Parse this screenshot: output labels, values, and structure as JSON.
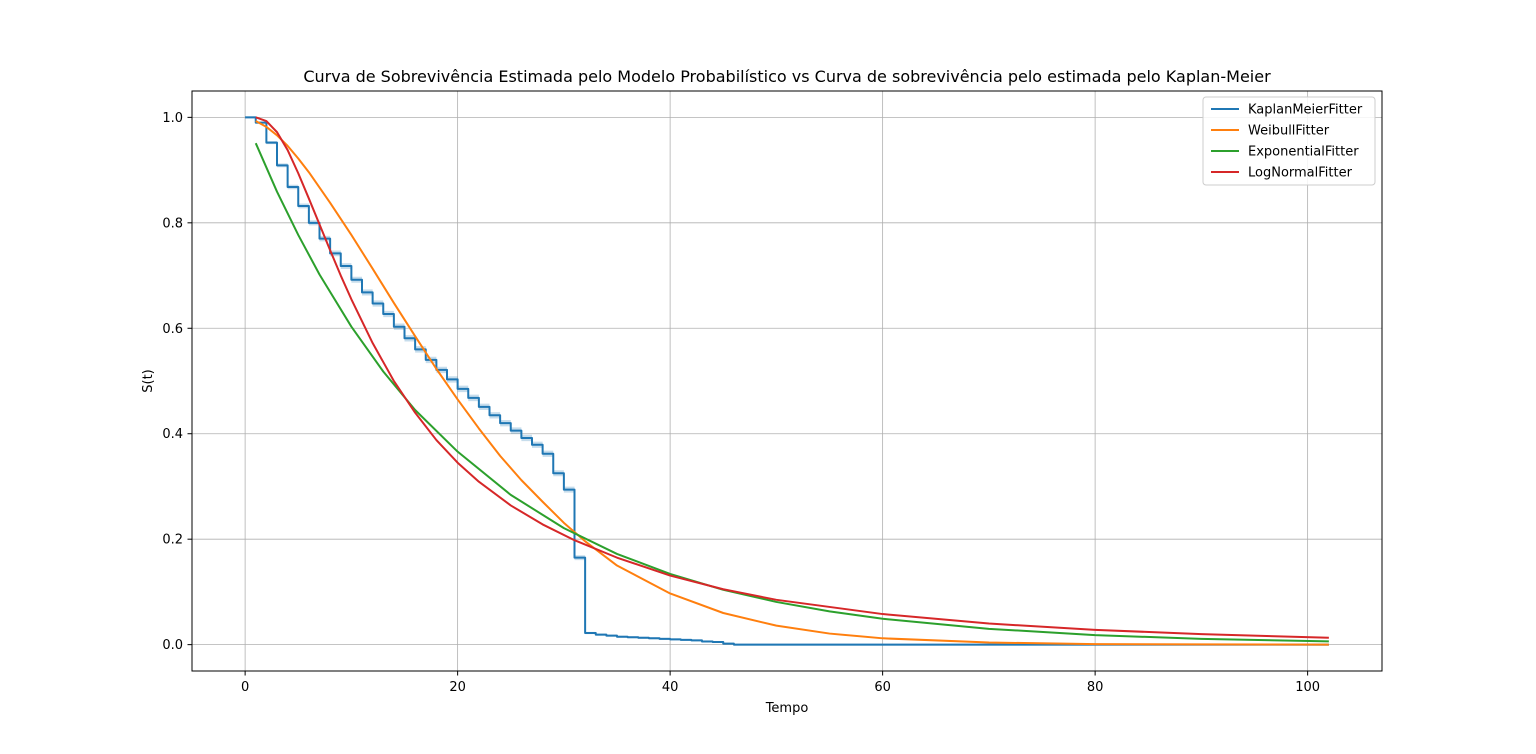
{
  "chart_data": {
    "type": "line",
    "title": "Curva de Sobrevivência Estimada pelo Modelo Probabilístico vs Curva de sobrevivência pelo estimada pelo Kaplan-Meier",
    "xlabel": "Tempo",
    "ylabel": "S(t)",
    "xlim": [
      -5,
      107
    ],
    "ylim": [
      -0.05,
      1.05
    ],
    "xticks": [
      0,
      20,
      40,
      60,
      80,
      100
    ],
    "yticks": [
      0.0,
      0.2,
      0.4,
      0.6,
      0.8,
      1.0
    ],
    "xtick_labels": [
      "0",
      "20",
      "40",
      "60",
      "80",
      "100"
    ],
    "ytick_labels": [
      "0.0",
      "0.2",
      "0.4",
      "0.6",
      "0.8",
      "1.0"
    ],
    "grid": true,
    "legend_position": "top-right",
    "series": [
      {
        "name": "KaplanMeierFitter",
        "style": "step",
        "color": "#1f77b4",
        "x": [
          0,
          1,
          2,
          3,
          4,
          5,
          6,
          7,
          8,
          9,
          10,
          11,
          12,
          13,
          14,
          15,
          16,
          17,
          18,
          19,
          20,
          21,
          22,
          23,
          24,
          25,
          26,
          27,
          28,
          29,
          30,
          31,
          32,
          33,
          34,
          35,
          36,
          37,
          38,
          39,
          40,
          41,
          42,
          43,
          44,
          45,
          46,
          102
        ],
        "y": [
          1.0,
          0.99,
          0.952,
          0.909,
          0.868,
          0.832,
          0.8,
          0.77,
          0.742,
          0.718,
          0.692,
          0.668,
          0.647,
          0.627,
          0.603,
          0.581,
          0.56,
          0.54,
          0.521,
          0.503,
          0.485,
          0.468,
          0.451,
          0.435,
          0.42,
          0.406,
          0.392,
          0.379,
          0.362,
          0.325,
          0.294,
          0.165,
          0.022,
          0.019,
          0.017,
          0.015,
          0.014,
          0.013,
          0.012,
          0.011,
          0.01,
          0.009,
          0.008,
          0.006,
          0.005,
          0.002,
          0.0,
          0.0
        ]
      },
      {
        "name": "WeibullFitter",
        "style": "line",
        "color": "#ff7f0e",
        "x": [
          1,
          2,
          3,
          4,
          5,
          6,
          8,
          10,
          12,
          14,
          16,
          18,
          20,
          22,
          24,
          26,
          28,
          30,
          32,
          35,
          40,
          45,
          50,
          55,
          60,
          70,
          80,
          90,
          102
        ],
        "y": [
          0.993,
          0.982,
          0.966,
          0.946,
          0.922,
          0.896,
          0.838,
          0.777,
          0.713,
          0.648,
          0.585,
          0.523,
          0.465,
          0.41,
          0.358,
          0.312,
          0.271,
          0.231,
          0.196,
          0.15,
          0.097,
          0.06,
          0.036,
          0.021,
          0.012,
          0.004,
          0.001,
          0.0005,
          0.0001
        ]
      },
      {
        "name": "ExponentialFitter",
        "style": "line",
        "color": "#2ca02c",
        "x": [
          1,
          3,
          5,
          7,
          10,
          13,
          16,
          20,
          25,
          30,
          35,
          40,
          45,
          50,
          55,
          60,
          70,
          80,
          90,
          102
        ],
        "y": [
          0.951,
          0.859,
          0.777,
          0.702,
          0.603,
          0.518,
          0.445,
          0.366,
          0.284,
          0.221,
          0.172,
          0.134,
          0.104,
          0.081,
          0.063,
          0.049,
          0.03,
          0.018,
          0.011,
          0.0061
        ]
      },
      {
        "name": "LogNormalFitter",
        "style": "line",
        "color": "#d62728",
        "x": [
          1,
          2,
          3,
          4,
          5,
          6,
          7,
          8,
          9,
          10,
          12,
          14,
          16,
          18,
          20,
          22,
          25,
          28,
          31,
          35,
          40,
          45,
          50,
          60,
          70,
          80,
          90,
          102
        ],
        "y": [
          1.0,
          0.993,
          0.972,
          0.938,
          0.894,
          0.846,
          0.797,
          0.748,
          0.7,
          0.655,
          0.572,
          0.5,
          0.44,
          0.388,
          0.345,
          0.309,
          0.264,
          0.228,
          0.198,
          0.165,
          0.131,
          0.105,
          0.085,
          0.058,
          0.04,
          0.028,
          0.02,
          0.013
        ]
      }
    ]
  }
}
